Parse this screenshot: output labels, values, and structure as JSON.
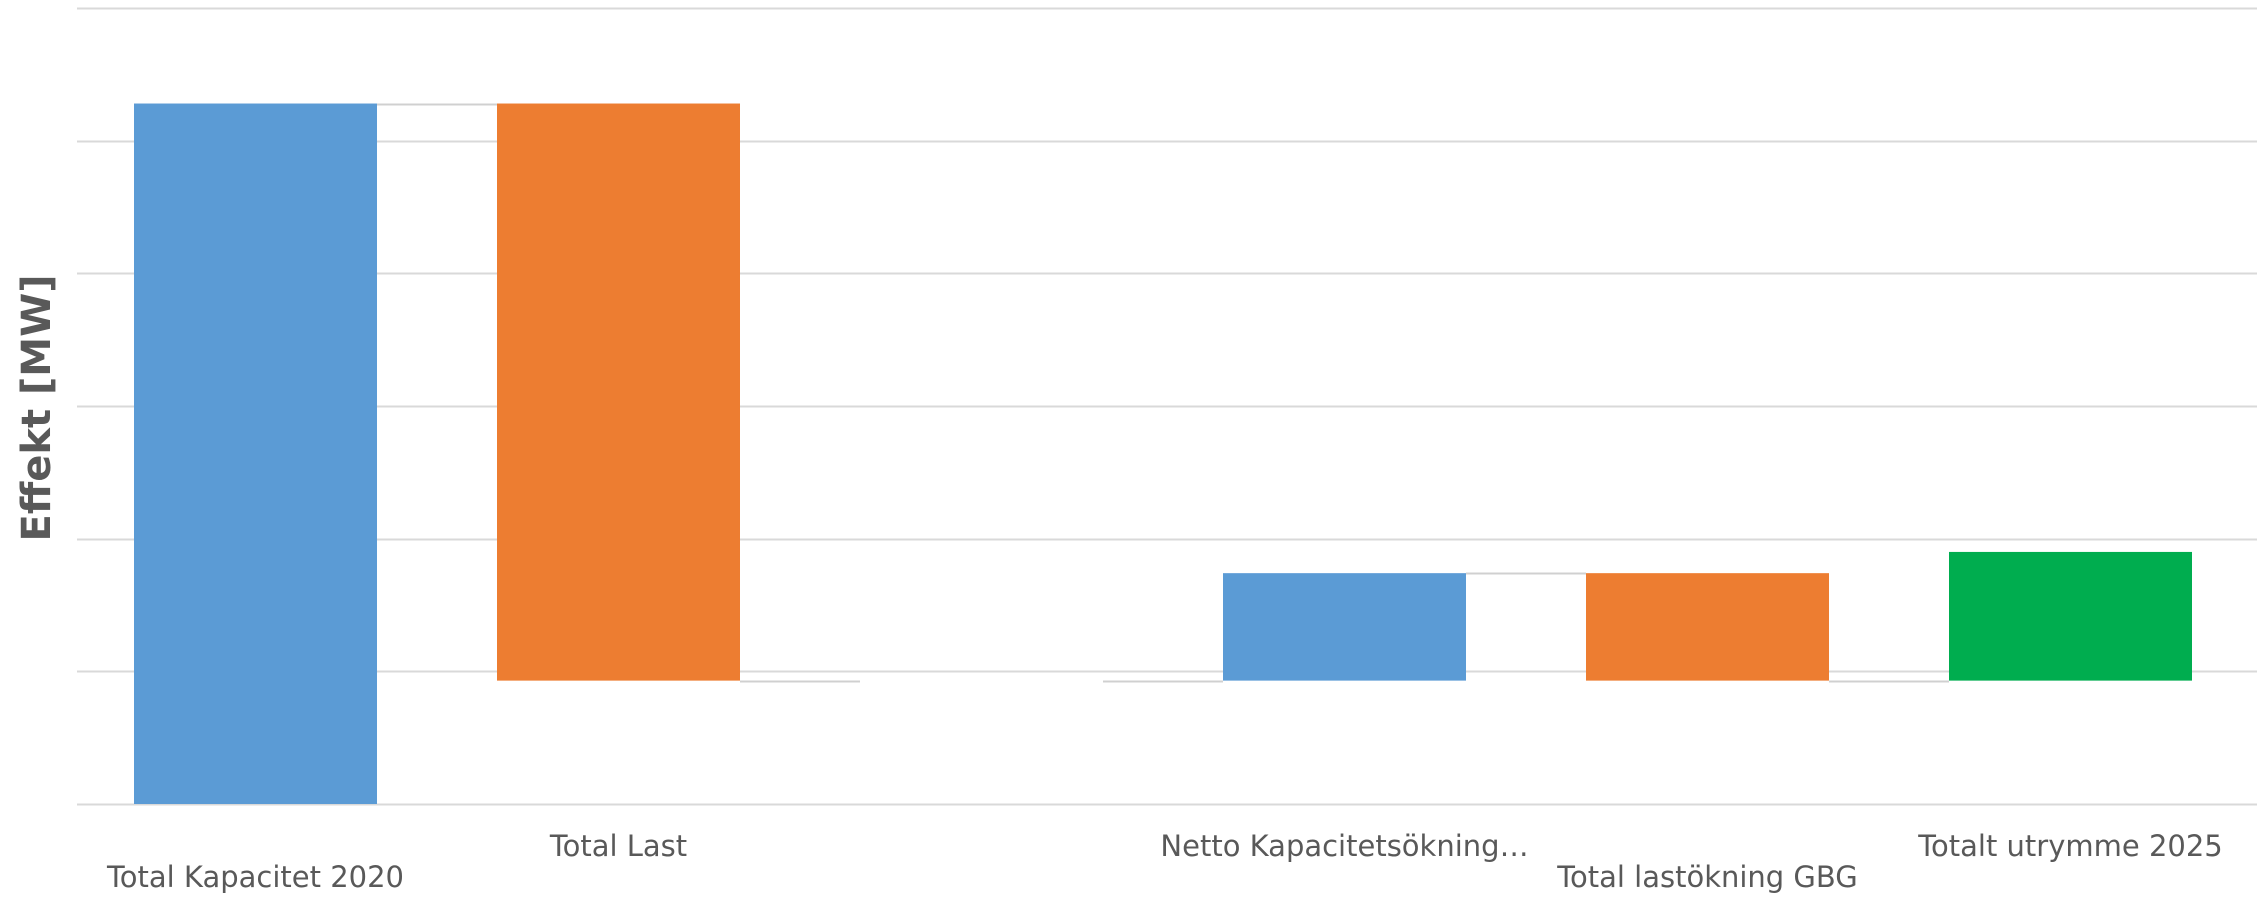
{
  "chart_data": {
    "type": "bar",
    "subtype": "waterfall",
    "title": "",
    "xlabel": "",
    "ylabel": "Effekt [MW]",
    "y_tick_labels_shown": false,
    "grid": true,
    "legend": "none",
    "categories": [
      "Total Kapacitet 2020",
      "Total Last",
      "",
      "Netto Kapacitetsökning…",
      "Total lastökning GBG",
      "Totalt utrymme 2025"
    ],
    "bars": [
      {
        "category": "Total Kapacitet 2020",
        "start": 0,
        "end": 5.28,
        "kind": "increase"
      },
      {
        "category": "Total Last",
        "start": 5.28,
        "end": 0.93,
        "kind": "decrease"
      },
      {
        "category": "",
        "start": 0.93,
        "end": 0.93,
        "kind": "none"
      },
      {
        "category": "Netto Kapacitetsökning…",
        "start": 0.93,
        "end": 1.74,
        "kind": "increase"
      },
      {
        "category": "Total lastökning GBG",
        "start": 1.74,
        "end": 0.93,
        "kind": "decrease"
      },
      {
        "category": "Totalt utrymme 2025",
        "start": 0.93,
        "end": 1.9,
        "kind": "total"
      }
    ],
    "ylim": [
      0,
      6
    ],
    "yticks": [
      0,
      1,
      2,
      3,
      4,
      5,
      6
    ],
    "colors": {
      "increase": "#5b9bd5",
      "decrease": "#ed7d31",
      "total": "#00ad4f",
      "gridline": "#d9d9d9",
      "connector": "#d0d0d0",
      "text": "#595959"
    }
  }
}
